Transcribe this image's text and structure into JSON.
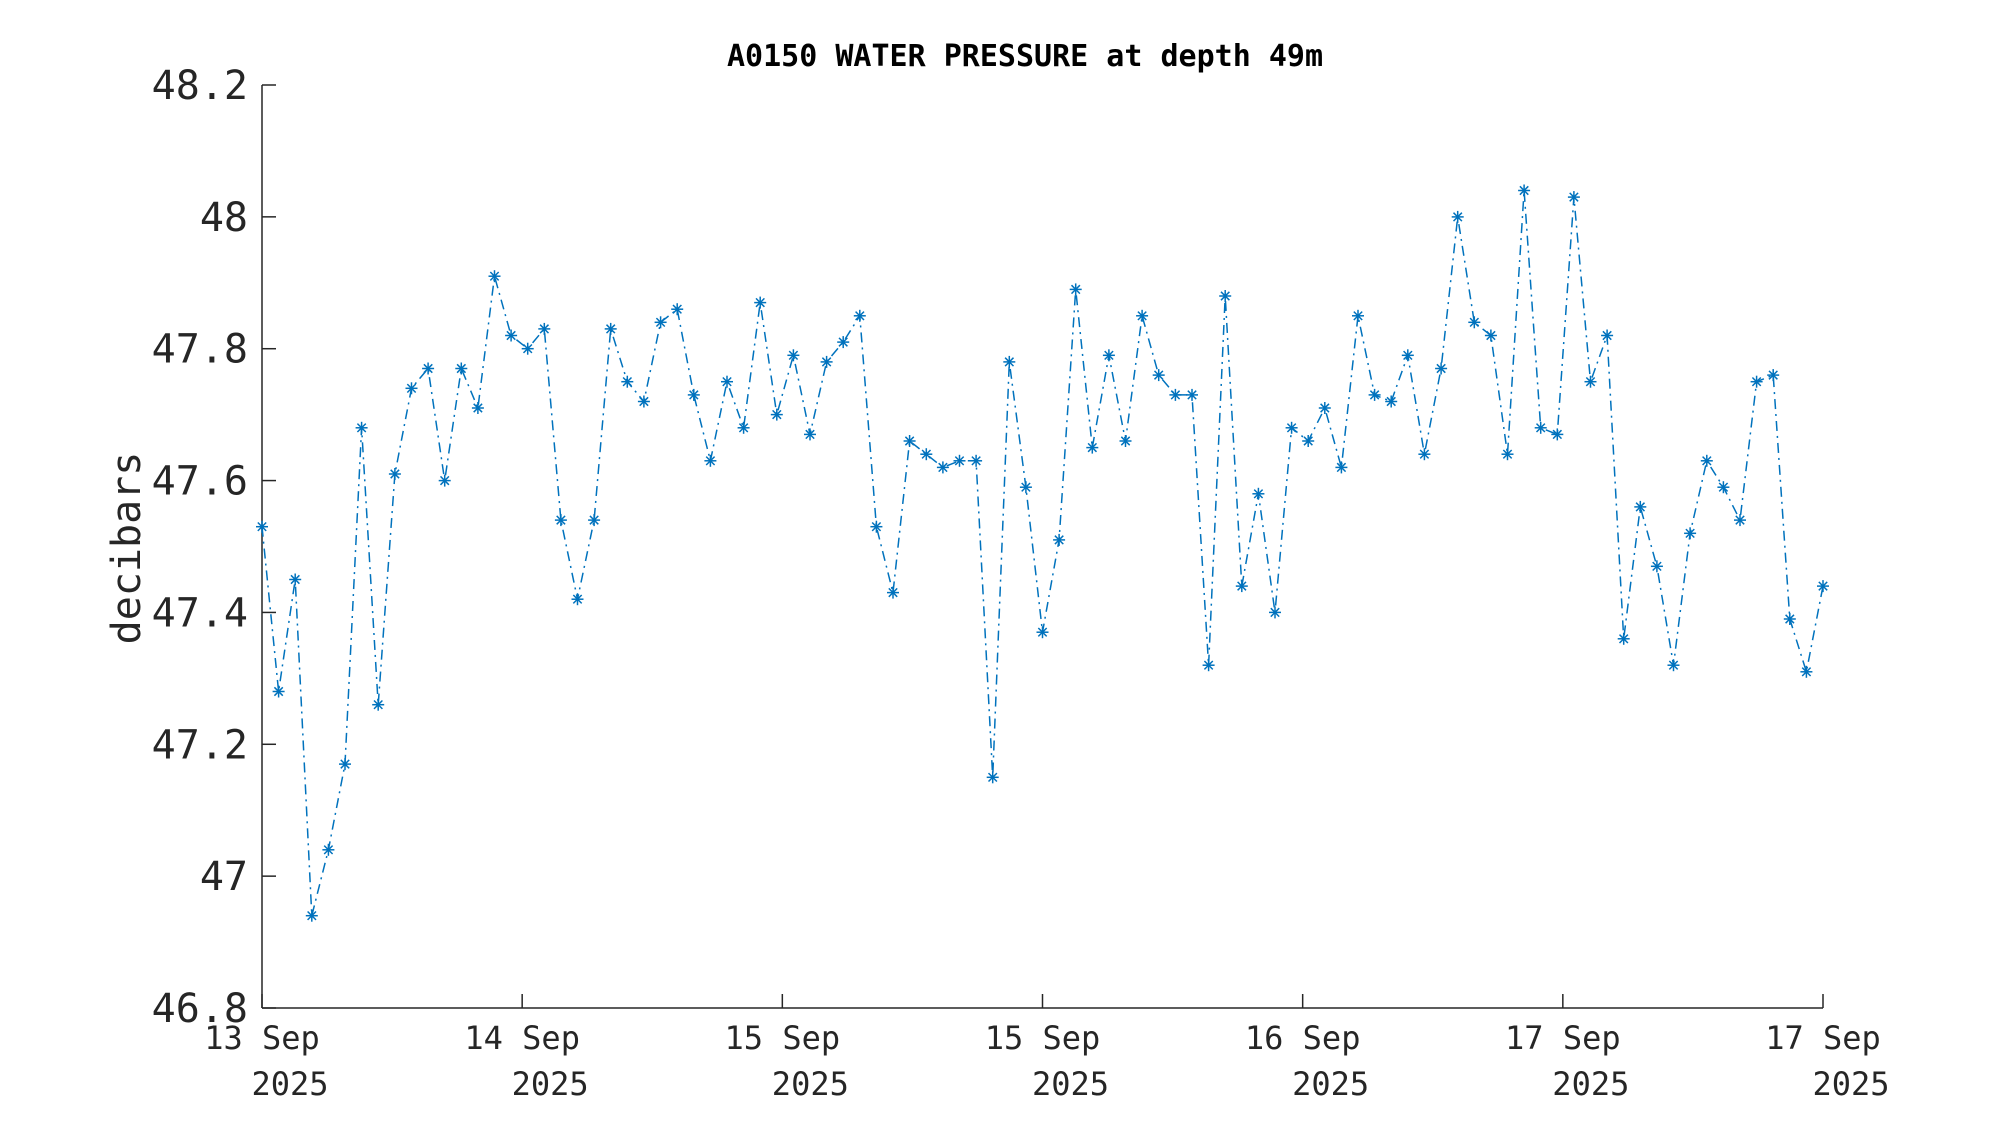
{
  "chart_data": {
    "type": "line",
    "title": "A0150 WATER PRESSURE at depth 49m",
    "xlabel": "",
    "ylabel": "decibars",
    "ylim": [
      46.8,
      48.2
    ],
    "yticks": [
      "46.8",
      "47",
      "47.2",
      "47.4",
      "47.6",
      "47.8",
      "48",
      "48.2"
    ],
    "xticks": [
      {
        "line1": "13 Sep",
        "line2": "2025"
      },
      {
        "line1": "14 Sep",
        "line2": "2025"
      },
      {
        "line1": "15 Sep",
        "line2": "2025"
      },
      {
        "line1": "15 Sep",
        "line2": "2025"
      },
      {
        "line1": "16 Sep",
        "line2": "2025"
      },
      {
        "line1": "17 Sep",
        "line2": "2025"
      },
      {
        "line1": "17 Sep",
        "line2": "2025"
      }
    ],
    "line_style": "dash-dot",
    "marker": "asterisk",
    "series_color": "#0072BD",
    "grid": false,
    "series": [
      {
        "values": [
          47.53,
          47.28,
          47.45,
          46.94,
          47.04,
          47.17,
          47.68,
          47.26,
          47.61,
          47.74,
          47.77,
          47.6,
          47.77,
          47.71,
          47.91,
          47.82,
          47.8,
          47.83,
          47.54,
          47.42,
          47.54,
          47.83,
          47.75,
          47.72,
          47.84,
          47.86,
          47.73,
          47.63,
          47.75,
          47.68,
          47.87,
          47.7,
          47.79,
          47.67,
          47.78,
          47.81,
          47.85,
          47.53,
          47.43,
          47.66,
          47.64,
          47.62,
          47.63,
          47.63,
          47.15,
          47.78,
          47.59,
          47.37,
          47.51,
          47.89,
          47.65,
          47.79,
          47.66,
          47.85,
          47.76,
          47.73,
          47.73,
          47.32,
          47.88,
          47.44,
          47.58,
          47.4,
          47.68,
          47.66,
          47.71,
          47.62,
          47.85,
          47.73,
          47.72,
          47.79,
          47.64,
          47.77,
          48.0,
          47.84,
          47.82,
          47.64,
          48.04,
          47.68,
          47.67,
          48.03,
          47.75,
          47.82,
          47.36,
          47.56,
          47.47,
          47.32,
          47.52,
          47.63,
          47.59,
          47.54,
          47.75,
          47.76,
          47.39,
          47.31,
          47.44
        ]
      }
    ]
  }
}
